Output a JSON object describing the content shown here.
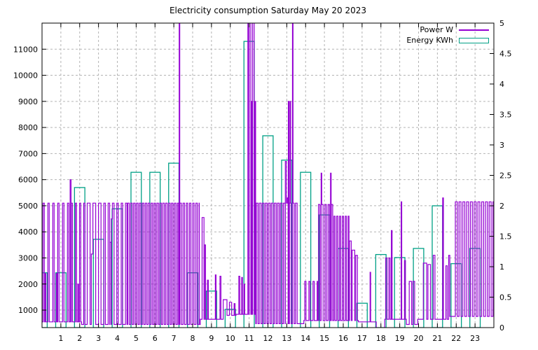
{
  "chart_data": {
    "type": "line",
    "title": "Electricity consumption Saturday May 20 2023",
    "legend_position": "top-right-inside",
    "grid": {
      "on": true,
      "color": "#b4b4b4",
      "dash": "3,3"
    },
    "x_axis": {
      "min": 0,
      "max": 24,
      "tick_labels": [
        "1",
        "2",
        "3",
        "4",
        "5",
        "6",
        "7",
        "8",
        "9",
        "10",
        "11",
        "12",
        "13",
        "14",
        "15",
        "16",
        "17",
        "18",
        "19",
        "20",
        "21",
        "22",
        "23"
      ]
    },
    "y_left_axis": {
      "label_for": "Power W",
      "min": 330,
      "max": 12000,
      "tick_labels": [
        "1000",
        "2000",
        "3000",
        "4000",
        "5000",
        "6000",
        "7000",
        "8000",
        "9000",
        "10000",
        "11000"
      ]
    },
    "y_right_axis": {
      "label_for": "Energy KWh",
      "min": 0,
      "max": 5,
      "tick_labels": [
        "0",
        "0.5",
        "1",
        "1.5",
        "2",
        "2.5",
        "3",
        "3.5",
        "4",
        "4.5",
        "5"
      ]
    },
    "series": {
      "power": {
        "label": "Power W",
        "color": "#9400d3",
        "style": "steps",
        "unit": "W",
        "baseline_steps": [
          [
            0,
            550
          ],
          [
            2.1,
            450
          ],
          [
            8.4,
            650
          ],
          [
            9.7,
            800
          ],
          [
            10.3,
            840
          ],
          [
            11.35,
            480
          ],
          [
            13.9,
            600
          ],
          [
            16.8,
            550
          ],
          [
            17.75,
            320
          ],
          [
            18.2,
            650
          ],
          [
            19.35,
            450
          ],
          [
            19.95,
            650
          ],
          [
            21.6,
            760
          ]
        ],
        "pulse_trains": [
          {
            "from": 0.05,
            "to": 1.45,
            "period": 0.26,
            "duty": 0.28,
            "high": 5100
          },
          {
            "from": 1.55,
            "to": 2.35,
            "period": 0.22,
            "duty": 0.3,
            "high": 5100
          },
          {
            "from": 2.4,
            "to": 3.05,
            "period": 0.3,
            "duty": 0.5,
            "high": 5100
          },
          {
            "from": 3.05,
            "to": 4.55,
            "period": 0.23,
            "duty": 0.35,
            "high": 5100
          },
          {
            "from": 4.55,
            "to": 7.25,
            "period": 0.155,
            "duty": 0.52,
            "high": 5100
          },
          {
            "from": 7.32,
            "to": 8.35,
            "period": 0.17,
            "duty": 0.45,
            "high": 5100
          },
          {
            "from": 11.38,
            "to": 13.55,
            "period": 0.16,
            "duty": 0.55,
            "high": 5100
          },
          {
            "from": 13.95,
            "to": 14.65,
            "period": 0.22,
            "duty": 0.3,
            "high": 2100
          },
          {
            "from": 14.68,
            "to": 15.45,
            "period": 0.17,
            "duty": 0.45,
            "high": 5050
          },
          {
            "from": 15.5,
            "to": 16.3,
            "period": 0.15,
            "duty": 0.42,
            "high": 4600
          },
          {
            "from": 21.95,
            "to": 24.01,
            "period": 0.2,
            "duty": 0.52,
            "high": 5150
          }
        ],
        "pulses": [
          [
            0.15,
            0.05,
            2400
          ],
          [
            0.75,
            0.05,
            2400
          ],
          [
            1.49,
            0.05,
            6000
          ],
          [
            1.9,
            0.04,
            2000
          ],
          [
            2.62,
            0.15,
            3150
          ],
          [
            3.6,
            0.07,
            3600
          ],
          [
            3.68,
            0.06,
            4500
          ],
          [
            7.28,
            0.035,
            12500
          ],
          [
            8.5,
            0.1,
            4550
          ],
          [
            8.63,
            0.05,
            3500
          ],
          [
            8.78,
            0.05,
            2150
          ],
          [
            9.2,
            0.04,
            2350
          ],
          [
            9.45,
            0.05,
            2300
          ],
          [
            9.62,
            0.2,
            1400
          ],
          [
            9.95,
            0.12,
            1300
          ],
          [
            10.2,
            0.05,
            1250
          ],
          [
            10.45,
            0.05,
            2300
          ],
          [
            10.6,
            0.04,
            2250
          ],
          [
            10.72,
            0.04,
            2000
          ],
          [
            10.93,
            0.05,
            12500
          ],
          [
            11.0,
            0.09,
            12500
          ],
          [
            11.12,
            0.04,
            9000
          ],
          [
            11.18,
            0.09,
            12500
          ],
          [
            11.3,
            0.04,
            9000
          ],
          [
            12.92,
            0.06,
            6700
          ],
          [
            13.0,
            0.05,
            5300
          ],
          [
            13.08,
            0.035,
            9000
          ],
          [
            13.17,
            0.03,
            9000
          ],
          [
            13.3,
            0.03,
            12500
          ],
          [
            14.82,
            0.035,
            6250
          ],
          [
            15.32,
            0.035,
            6250
          ],
          [
            16.33,
            0.09,
            3650
          ],
          [
            16.47,
            0.14,
            3300
          ],
          [
            16.66,
            0.09,
            3100
          ],
          [
            17.42,
            0.035,
            2450
          ],
          [
            18.25,
            0.07,
            3000
          ],
          [
            18.42,
            0.06,
            3000
          ],
          [
            18.55,
            0.04,
            4050
          ],
          [
            19.07,
            0.035,
            5150
          ],
          [
            19.25,
            0.05,
            2900
          ],
          [
            19.5,
            0.13,
            2100
          ],
          [
            19.7,
            0.09,
            2100
          ],
          [
            20.25,
            0.18,
            2800
          ],
          [
            20.5,
            0.13,
            2750
          ],
          [
            20.78,
            0.09,
            3100
          ],
          [
            21.28,
            0.04,
            5300
          ],
          [
            21.45,
            0.07,
            2700
          ],
          [
            21.6,
            0.06,
            3100
          ]
        ]
      },
      "energy": {
        "label": "Energy KWh",
        "color": "#00a086",
        "style": "boxes",
        "unit": "KWh",
        "box_width_hours": 0.55,
        "hours": [
          0,
          1,
          2,
          3,
          4,
          5,
          6,
          7,
          8,
          9,
          10,
          11,
          12,
          13,
          14,
          15,
          16,
          17,
          18,
          19,
          20,
          21,
          22,
          23
        ],
        "hourly_kwh": [
          0.9,
          0.9,
          2.3,
          1.45,
          1.95,
          2.55,
          2.55,
          2.7,
          0.9,
          0.6,
          0.3,
          4.7,
          3.15,
          2.75,
          2.55,
          1.85,
          1.3,
          0.4,
          1.2,
          1.15,
          1.3,
          2.0,
          1.05,
          1.3
        ]
      }
    }
  }
}
